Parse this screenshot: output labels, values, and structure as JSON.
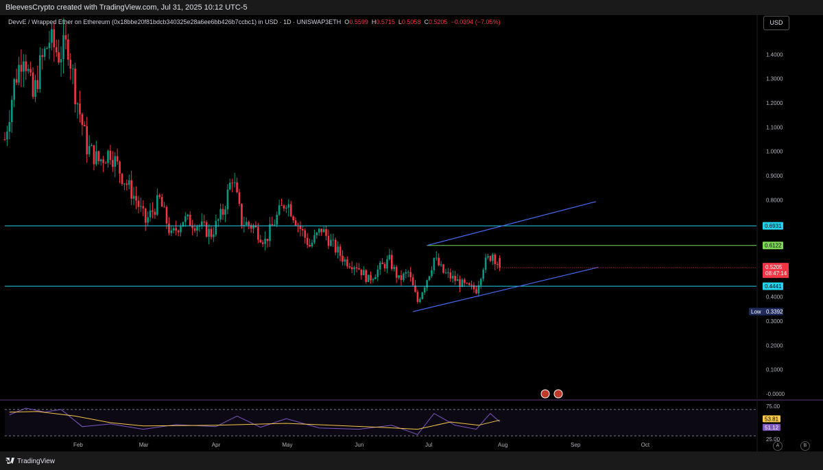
{
  "header": {
    "credit": "BleevesCrypto created with TradingView.com, Jul 31, 2025 10:12 UTC-5"
  },
  "legend": {
    "symbol": "DevvE / Wrapped Ether on Ethereum (0x18bbe20f81bdcb340325e28a6ee6bb426b7ccbc1) in USD · 1D · UNISWAP3ETH",
    "o_label": "O",
    "o": "0.5599",
    "h_label": "H",
    "h": "0.5715",
    "l_label": "L",
    "l": "0.5058",
    "c_label": "C",
    "c": "0.5205",
    "change": "−0.0394 (−7.05%)"
  },
  "currency_button": "USD",
  "colors": {
    "up": "#089981",
    "down": "#f23645",
    "cyan": "#22d3ee",
    "green_level": "#7ed957",
    "channel": "#4a6cf7",
    "rsi": "#7e57c2",
    "rsi_ma": "#f7c948"
  },
  "chart_data": [
    {
      "type": "candlestick",
      "title": "",
      "xlabel": "",
      "ylabel": "",
      "x_axis_ticks": [
        "Feb",
        "Mar",
        "Apr",
        "May",
        "Jun",
        "Jul",
        "Aug",
        "Sep",
        "Oct"
      ],
      "y_axis_ticks": [
        "1.4000",
        "1.3000",
        "1.2000",
        "1.1000",
        "1.0000",
        "0.9000",
        "0.8000",
        "0.4000",
        "0.3000",
        "0.2000",
        "0.1000",
        "-0.0000"
      ],
      "ylim": [
        -0.02,
        1.52
      ],
      "grid": false,
      "x_start": "2025-01-01",
      "series": [
        {
          "name": "",
          "close_path": [
            {
              "date": "2025-01-01",
              "price": 1.05
            },
            {
              "date": "2025-01-05",
              "price": 1.28
            },
            {
              "date": "2025-01-09",
              "price": 1.42
            },
            {
              "date": "2025-01-13",
              "price": 1.22
            },
            {
              "date": "2025-01-16",
              "price": 1.35
            },
            {
              "date": "2025-01-20",
              "price": 1.46
            },
            {
              "date": "2025-01-24",
              "price": 1.4
            },
            {
              "date": "2025-01-28",
              "price": 1.44
            },
            {
              "date": "2025-01-31",
              "price": 1.25
            },
            {
              "date": "2025-02-05",
              "price": 1.02
            },
            {
              "date": "2025-02-10",
              "price": 0.96
            },
            {
              "date": "2025-02-15",
              "price": 1.0
            },
            {
              "date": "2025-02-20",
              "price": 0.9
            },
            {
              "date": "2025-02-26",
              "price": 0.8
            },
            {
              "date": "2025-03-02",
              "price": 0.71
            },
            {
              "date": "2025-03-08",
              "price": 0.8
            },
            {
              "date": "2025-03-13",
              "price": 0.65
            },
            {
              "date": "2025-03-18",
              "price": 0.72
            },
            {
              "date": "2025-03-24",
              "price": 0.7
            },
            {
              "date": "2025-03-30",
              "price": 0.66
            },
            {
              "date": "2025-04-04",
              "price": 0.75
            },
            {
              "date": "2025-04-08",
              "price": 0.9
            },
            {
              "date": "2025-04-12",
              "price": 0.71
            },
            {
              "date": "2025-04-17",
              "price": 0.69
            },
            {
              "date": "2025-04-22",
              "price": 0.63
            },
            {
              "date": "2025-04-27",
              "price": 0.73
            },
            {
              "date": "2025-05-01",
              "price": 0.8
            },
            {
              "date": "2025-05-06",
              "price": 0.7
            },
            {
              "date": "2025-05-11",
              "price": 0.61
            },
            {
              "date": "2025-05-16",
              "price": 0.68
            },
            {
              "date": "2025-05-21",
              "price": 0.61
            },
            {
              "date": "2025-05-26",
              "price": 0.55
            },
            {
              "date": "2025-05-31",
              "price": 0.53
            },
            {
              "date": "2025-06-05",
              "price": 0.47
            },
            {
              "date": "2025-06-10",
              "price": 0.52
            },
            {
              "date": "2025-06-14",
              "price": 0.55
            },
            {
              "date": "2025-06-18",
              "price": 0.47
            },
            {
              "date": "2025-06-22",
              "price": 0.5
            },
            {
              "date": "2025-06-26",
              "price": 0.38
            },
            {
              "date": "2025-07-01",
              "price": 0.5
            },
            {
              "date": "2025-07-03",
              "price": 0.56
            },
            {
              "date": "2025-07-07",
              "price": 0.5
            },
            {
              "date": "2025-07-12",
              "price": 0.47
            },
            {
              "date": "2025-07-17",
              "price": 0.44
            },
            {
              "date": "2025-07-21",
              "price": 0.43
            },
            {
              "date": "2025-07-24",
              "price": 0.53
            },
            {
              "date": "2025-07-28",
              "price": 0.58
            },
            {
              "date": "2025-07-31",
              "price": 0.5205
            }
          ],
          "last": {
            "open": 0.5599,
            "high": 0.5715,
            "low": 0.5058,
            "close": 0.5205
          }
        }
      ],
      "horizontal_levels": [
        {
          "name": "",
          "value": 0.6931,
          "color": "cyan",
          "label": "0.6931"
        },
        {
          "name": "",
          "value": 0.6122,
          "color": "green",
          "label": "0.6122"
        },
        {
          "name": "",
          "value": 0.4441,
          "color": "cyan",
          "label": "0.4441"
        }
      ],
      "channel": {
        "upper": [
          {
            "date": "2025-06-30",
            "price": 0.6122
          },
          {
            "date": "2025-09-10",
            "price": 0.793
          }
        ],
        "lower": [
          {
            "date": "2025-06-24",
            "price": 0.3392
          },
          {
            "date": "2025-09-11",
            "price": 0.522
          }
        ]
      },
      "price_labels": {
        "last": "0.5205",
        "countdown": "08:47:14",
        "low_label": "Low",
        "low_value": "0.3392"
      }
    },
    {
      "type": "line",
      "title": "",
      "ylim": [
        25,
        75
      ],
      "y_axis_ticks": [
        "75.00",
        "25.00"
      ],
      "band": [
        30,
        70
      ],
      "series": [
        {
          "name": "",
          "color": "rsi",
          "value_label": "51.12",
          "points": [
            {
              "date": "2025-01-03",
              "value": 62
            },
            {
              "date": "2025-01-10",
              "value": 72
            },
            {
              "date": "2025-01-18",
              "value": 66
            },
            {
              "date": "2025-01-25",
              "value": 70
            },
            {
              "date": "2025-02-03",
              "value": 44
            },
            {
              "date": "2025-02-15",
              "value": 48
            },
            {
              "date": "2025-03-01",
              "value": 40
            },
            {
              "date": "2025-03-15",
              "value": 47
            },
            {
              "date": "2025-04-01",
              "value": 44
            },
            {
              "date": "2025-04-10",
              "value": 60
            },
            {
              "date": "2025-04-20",
              "value": 43
            },
            {
              "date": "2025-05-01",
              "value": 56
            },
            {
              "date": "2025-05-15",
              "value": 42
            },
            {
              "date": "2025-06-01",
              "value": 40
            },
            {
              "date": "2025-06-15",
              "value": 46
            },
            {
              "date": "2025-06-26",
              "value": 32
            },
            {
              "date": "2025-07-03",
              "value": 64
            },
            {
              "date": "2025-07-12",
              "value": 46
            },
            {
              "date": "2025-07-21",
              "value": 40
            },
            {
              "date": "2025-07-27",
              "value": 64
            },
            {
              "date": "2025-07-31",
              "value": 51.12
            }
          ]
        },
        {
          "name": "",
          "color": "rsi_ma",
          "value_label": "53.81",
          "points": [
            {
              "date": "2025-01-03",
              "value": 66
            },
            {
              "date": "2025-01-15",
              "value": 67
            },
            {
              "date": "2025-01-31",
              "value": 60
            },
            {
              "date": "2025-02-15",
              "value": 50
            },
            {
              "date": "2025-03-01",
              "value": 45
            },
            {
              "date": "2025-04-01",
              "value": 46
            },
            {
              "date": "2025-05-01",
              "value": 49
            },
            {
              "date": "2025-05-20",
              "value": 46
            },
            {
              "date": "2025-06-10",
              "value": 43
            },
            {
              "date": "2025-06-26",
              "value": 40
            },
            {
              "date": "2025-07-10",
              "value": 51
            },
            {
              "date": "2025-07-22",
              "value": 46
            },
            {
              "date": "2025-07-31",
              "value": 53.81
            }
          ]
        }
      ]
    }
  ]
}
